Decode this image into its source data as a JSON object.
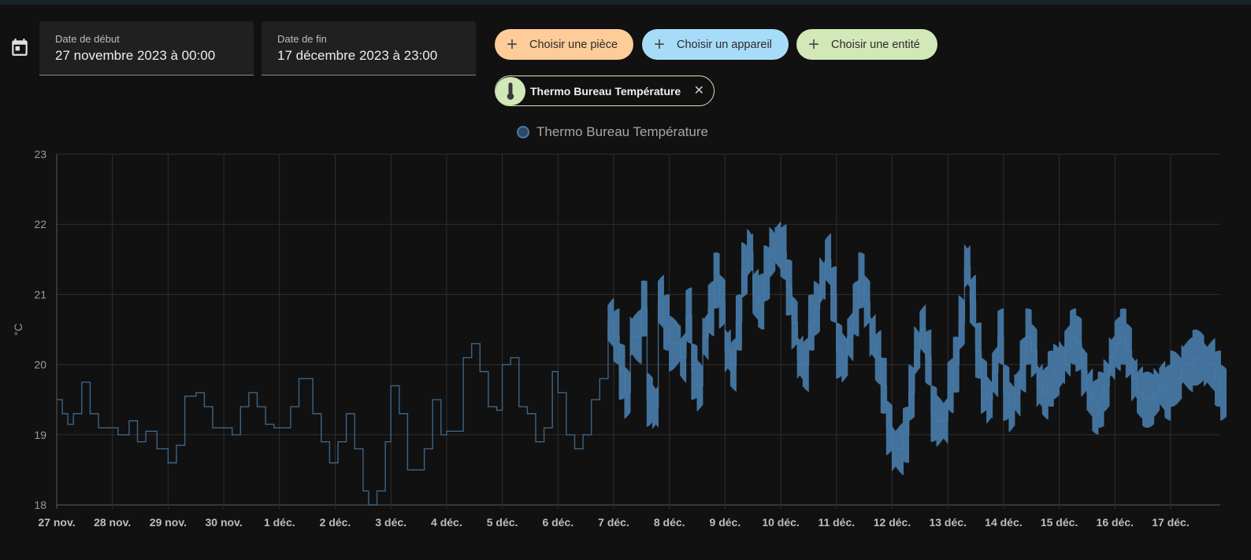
{
  "date_range": {
    "start_label": "Date de début",
    "start_value": "27 novembre 2023 à 00:00",
    "end_label": "Date de fin",
    "end_value": "17 décembre 2023 à 23:00"
  },
  "icons": {
    "calendar": "calendar-icon",
    "add": "plus-icon",
    "thermometer": "thermometer-icon",
    "remove": "close-icon"
  },
  "pickers": {
    "room": "Choisir une pièce",
    "device": "Choisir un appareil",
    "entity": "Choisir une entité"
  },
  "selected_entity": {
    "name": "Thermo Bureau Température"
  },
  "colors": {
    "room_chip": "#fdcc99",
    "device_chip": "#a7dcf9",
    "entity_chip": "#d2e8b8",
    "series_line": "#4779a5"
  },
  "chart_data": {
    "type": "line",
    "ylabel": "°C",
    "ylim": [
      18,
      23
    ],
    "yticks": [
      "18",
      "19",
      "20",
      "21",
      "22",
      "23"
    ],
    "xlim": [
      "27 nov.",
      "17 déc."
    ],
    "xticks": [
      "27 nov.",
      "28 nov.",
      "29 nov.",
      "30 nov.",
      "1 déc.",
      "2 déc.",
      "3 déc.",
      "4 déc.",
      "5 déc.",
      "6 déc.",
      "7 déc.",
      "8 déc.",
      "9 déc.",
      "10 déc.",
      "11 déc.",
      "12 déc.",
      "13 déc.",
      "14 déc.",
      "15 déc.",
      "16 déc.",
      "17 déc."
    ],
    "grid": true,
    "legend_position": "top-center",
    "series": [
      {
        "name": "Thermo Bureau Température",
        "x_days": [
          0,
          0.1,
          0.2,
          0.3,
          0.45,
          0.6,
          0.75,
          0.9,
          1.1,
          1.3,
          1.45,
          1.6,
          1.8,
          2.0,
          2.15,
          2.3,
          2.5,
          2.65,
          2.8,
          3.0,
          3.15,
          3.3,
          3.45,
          3.6,
          3.75,
          3.9,
          4.0,
          4.2,
          4.35,
          4.5,
          4.6,
          4.75,
          4.9,
          5.05,
          5.2,
          5.35,
          5.5,
          5.6,
          5.75,
          5.9,
          6.0,
          6.15,
          6.3,
          6.45,
          6.6,
          6.75,
          6.9,
          7.0,
          7.15,
          7.3,
          7.45,
          7.6,
          7.75,
          7.9,
          8.0,
          8.15,
          8.3,
          8.45,
          8.6,
          8.75,
          8.9,
          9.0,
          9.15,
          9.3,
          9.45,
          9.6,
          9.75,
          9.9,
          10.0,
          10.1,
          10.2,
          10.3,
          10.4,
          10.5,
          10.6,
          10.7,
          10.8,
          10.9,
          11.0,
          11.1,
          11.2,
          11.3,
          11.4,
          11.5,
          11.6,
          11.7,
          11.8,
          11.9,
          12.0,
          12.1,
          12.2,
          12.3,
          12.4,
          12.5,
          12.6,
          12.7,
          12.8,
          12.9,
          13.0,
          13.1,
          13.2,
          13.3,
          13.4,
          13.5,
          13.6,
          13.7,
          13.8,
          13.9,
          14.0,
          14.1,
          14.2,
          14.3,
          14.4,
          14.5,
          14.6,
          14.7,
          14.8,
          14.9,
          15.0,
          15.1,
          15.2,
          15.3,
          15.4,
          15.5,
          15.6,
          15.7,
          15.8,
          15.9,
          16.0,
          16.1,
          16.2,
          16.3,
          16.4,
          16.5,
          16.6,
          16.7,
          16.8,
          16.9,
          17.0,
          17.1,
          17.2,
          17.3,
          17.4,
          17.5,
          17.6,
          17.7,
          17.8,
          17.9,
          18.0,
          18.1,
          18.2,
          18.3,
          18.4,
          18.5,
          18.6,
          18.7,
          18.8,
          18.9,
          19.0,
          19.1,
          19.2,
          19.3,
          19.4,
          19.5,
          19.6,
          19.7,
          19.8,
          19.9,
          20.0,
          20.2,
          20.4,
          20.6,
          20.8,
          20.9
        ],
        "values": [
          19.5,
          19.3,
          19.15,
          19.3,
          19.75,
          19.3,
          19.1,
          19.1,
          19.0,
          19.2,
          18.9,
          19.05,
          18.8,
          18.6,
          18.85,
          19.55,
          19.6,
          19.4,
          19.1,
          19.1,
          19.0,
          19.4,
          19.6,
          19.4,
          19.15,
          19.1,
          19.1,
          19.4,
          19.8,
          19.8,
          19.3,
          18.9,
          18.6,
          18.9,
          19.3,
          18.8,
          18.2,
          18.0,
          18.2,
          18.9,
          19.7,
          19.3,
          18.5,
          18.5,
          18.8,
          19.5,
          19.0,
          19.05,
          19.05,
          20.1,
          20.3,
          19.9,
          19.4,
          19.35,
          20.0,
          20.1,
          19.4,
          19.3,
          18.9,
          19.1,
          19.9,
          19.6,
          19.0,
          18.8,
          19.0,
          19.5,
          19.8,
          20.6,
          20.4,
          19.9,
          19.6,
          20.4,
          20.4,
          20.8,
          19.5,
          19.4,
          20.9,
          20.6,
          20.3,
          20.3,
          20.1,
          20.7,
          19.9,
          19.7,
          20.4,
          20.8,
          21.2,
          20.9,
          20.2,
          20.0,
          20.6,
          21.35,
          21.6,
          21.0,
          20.9,
          21.3,
          21.6,
          21.7,
          21.6,
          21.1,
          20.6,
          20.1,
          20.0,
          20.6,
          20.8,
          21.2,
          21.5,
          21.0,
          20.2,
          20.1,
          20.4,
          20.8,
          21.2,
          20.9,
          20.4,
          20.1,
          19.7,
          19.1,
          18.8,
          18.8,
          19.0,
          19.6,
          20.2,
          20.5,
          20.1,
          19.3,
          19.2,
          19.2,
          19.7,
          20.0,
          20.6,
          21.4,
          20.9,
          20.2,
          19.7,
          19.5,
          19.9,
          20.4,
          19.6,
          19.4,
          19.6,
          20.0,
          20.4,
          20.2,
          19.7,
          19.6,
          19.8,
          19.9,
          20.0,
          20.2,
          20.4,
          20.3,
          19.9,
          19.6,
          19.4,
          19.5,
          19.7,
          20.1,
          20.3,
          20.4,
          20.2,
          19.8,
          19.6,
          19.5,
          19.5,
          19.6,
          19.7,
          19.6,
          19.8,
          20.0,
          20.1,
          20.0,
          19.8,
          19.6
        ]
      }
    ]
  }
}
